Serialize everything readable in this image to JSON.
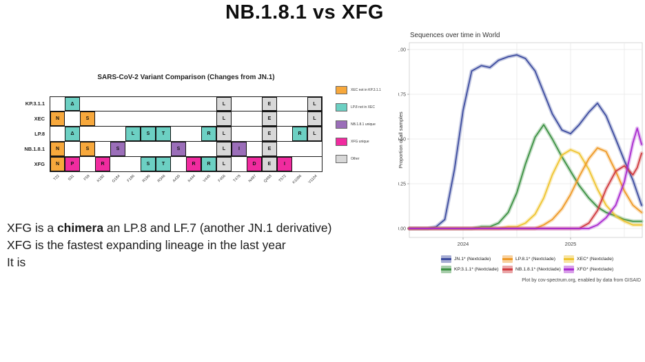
{
  "slide": {
    "title": "NB.1.8.1 vs XFG",
    "body_lines": [
      [
        {
          "text": "XFG is a ",
          "bold": false
        },
        {
          "text": "chimera",
          "bold": true
        },
        {
          "text": " an LP.8 and LF.7 (another JN.1 derivative)",
          "bold": false
        }
      ],
      [
        {
          "text": "XFG is the fastest expanding lineage in the last year",
          "bold": false
        }
      ],
      [
        {
          "text": "It is",
          "bold": false
        }
      ]
    ]
  },
  "chart_data": [
    {
      "type": "heatmap",
      "title": "SARS-CoV-2 Variant Comparison (Changes from JN.1)",
      "columns": [
        "T22",
        "S31",
        "F59",
        "K182",
        "G184",
        "F186",
        "R190",
        "R346",
        "A435",
        "K444",
        "V445",
        "F456",
        "T478",
        "N487",
        "Q493",
        "T572",
        "K1086",
        "V1104"
      ],
      "rows": [
        {
          "label": "KP.3.1.1",
          "cells": [
            {
              "col": "S31",
              "letter": "Δ",
              "color": "teal"
            },
            {
              "col": "F456",
              "letter": "L",
              "color": "gray"
            },
            {
              "col": "Q493",
              "letter": "E",
              "color": "gray"
            },
            {
              "col": "V1104",
              "letter": "L",
              "color": "gray"
            }
          ]
        },
        {
          "label": "XEC",
          "cells": [
            {
              "col": "T22",
              "letter": "N",
              "color": "orange"
            },
            {
              "col": "F59",
              "letter": "S",
              "color": "orange"
            },
            {
              "col": "F456",
              "letter": "L",
              "color": "gray"
            },
            {
              "col": "Q493",
              "letter": "E",
              "color": "gray"
            },
            {
              "col": "V1104",
              "letter": "L",
              "color": "gray"
            }
          ]
        },
        {
          "label": "LP.8",
          "cells": [
            {
              "col": "S31",
              "letter": "Δ",
              "color": "teal"
            },
            {
              "col": "F186",
              "letter": "L",
              "color": "teal"
            },
            {
              "col": "R190",
              "letter": "S",
              "color": "teal"
            },
            {
              "col": "R346",
              "letter": "T",
              "color": "teal"
            },
            {
              "col": "V445",
              "letter": "R",
              "color": "teal"
            },
            {
              "col": "F456",
              "letter": "L",
              "color": "gray"
            },
            {
              "col": "Q493",
              "letter": "E",
              "color": "gray"
            },
            {
              "col": "K1086",
              "letter": "R",
              "color": "teal"
            },
            {
              "col": "V1104",
              "letter": "L",
              "color": "gray"
            }
          ]
        },
        {
          "label": "NB.1.8.1",
          "cells": [
            {
              "col": "T22",
              "letter": "N",
              "color": "orange"
            },
            {
              "col": "F59",
              "letter": "S",
              "color": "orange"
            },
            {
              "col": "G184",
              "letter": "S",
              "color": "purple"
            },
            {
              "col": "A435",
              "letter": "S",
              "color": "purple"
            },
            {
              "col": "F456",
              "letter": "L",
              "color": "gray"
            },
            {
              "col": "T478",
              "letter": "I",
              "color": "purple"
            },
            {
              "col": "Q493",
              "letter": "E",
              "color": "gray"
            }
          ]
        },
        {
          "label": "XFG",
          "cells": [
            {
              "col": "T22",
              "letter": "N",
              "color": "orange"
            },
            {
              "col": "S31",
              "letter": "P",
              "color": "magenta"
            },
            {
              "col": "K182",
              "letter": "R",
              "color": "magenta"
            },
            {
              "col": "R190",
              "letter": "S",
              "color": "teal"
            },
            {
              "col": "R346",
              "letter": "T",
              "color": "teal"
            },
            {
              "col": "K444",
              "letter": "R",
              "color": "magenta"
            },
            {
              "col": "V445",
              "letter": "R",
              "color": "teal"
            },
            {
              "col": "F456",
              "letter": "L",
              "color": "gray"
            },
            {
              "col": "N487",
              "letter": "D",
              "color": "magenta"
            },
            {
              "col": "Q493",
              "letter": "E",
              "color": "gray"
            },
            {
              "col": "T572",
              "letter": "I",
              "color": "magenta"
            }
          ]
        }
      ],
      "palette": {
        "orange": "#F7A83C",
        "teal": "#6CD0C3",
        "purple": "#9B6EB9",
        "magenta": "#F02B9F",
        "gray": "#D8D8D8"
      },
      "legend": [
        {
          "label": "XEC not in KP.3.1.1",
          "color": "orange"
        },
        {
          "label": "LP.8 not in XEC",
          "color": "teal"
        },
        {
          "label": "NB.1.8.1 unique",
          "color": "purple"
        },
        {
          "label": "XFG unique",
          "color": "magenta"
        },
        {
          "label": "Other",
          "color": "gray"
        }
      ]
    },
    {
      "type": "line",
      "title": "Sequences over time in World",
      "xlabel": "",
      "ylabel": "Proportion of all samples",
      "xlim": [
        2023.5,
        2025.667
      ],
      "ylim": [
        0,
        1.0
      ],
      "grid": true,
      "xticks": [
        2024,
        2025
      ],
      "xtick_labels": [
        "2024",
        "2025"
      ],
      "xgrid_minor": [
        2024,
        2024.5,
        2025,
        2025.5
      ],
      "yticks": [
        0,
        0.25,
        0.5,
        0.75,
        1.0
      ],
      "ytick_labels": [
        "0.00",
        "0.25",
        "0.50",
        "0.75",
        "1.00"
      ],
      "x": [
        2023.5,
        2023.58,
        2023.67,
        2023.75,
        2023.83,
        2023.92,
        2024.0,
        2024.08,
        2024.17,
        2024.25,
        2024.33,
        2024.42,
        2024.5,
        2024.58,
        2024.67,
        2024.75,
        2024.83,
        2024.92,
        2025.0,
        2025.08,
        2025.17,
        2025.25,
        2025.33,
        2025.42,
        2025.5,
        2025.58,
        2025.62,
        2025.66
      ],
      "series": [
        {
          "name": "JN.1* (Nextclade)",
          "color": "#3D4C9F",
          "values": [
            0.0,
            0.0,
            0.0,
            0.01,
            0.05,
            0.33,
            0.66,
            0.88,
            0.91,
            0.9,
            0.94,
            0.96,
            0.97,
            0.95,
            0.88,
            0.76,
            0.64,
            0.55,
            0.53,
            0.58,
            0.65,
            0.7,
            0.63,
            0.5,
            0.38,
            0.27,
            0.2,
            0.13
          ]
        },
        {
          "name": "KP.3.1.1* (Nextclade)",
          "color": "#3C9143",
          "values": [
            0,
            0,
            0,
            0,
            0,
            0,
            0,
            0.0,
            0.01,
            0.01,
            0.03,
            0.09,
            0.2,
            0.36,
            0.51,
            0.58,
            0.5,
            0.4,
            0.32,
            0.24,
            0.17,
            0.12,
            0.09,
            0.07,
            0.05,
            0.04,
            0.04,
            0.04
          ]
        },
        {
          "name": "XEC* (Nextclade)",
          "color": "#EFC42F",
          "values": [
            0,
            0,
            0,
            0,
            0,
            0,
            0,
            0,
            0,
            0,
            0.0,
            0.01,
            0.01,
            0.03,
            0.08,
            0.17,
            0.3,
            0.41,
            0.44,
            0.42,
            0.33,
            0.22,
            0.13,
            0.07,
            0.04,
            0.02,
            0.02,
            0.02
          ]
        },
        {
          "name": "LP.8.1* (Nextclade)",
          "color": "#EF9A27",
          "values": [
            0,
            0,
            0,
            0,
            0,
            0,
            0,
            0,
            0,
            0,
            0,
            0,
            0,
            0,
            0,
            0.02,
            0.05,
            0.11,
            0.19,
            0.29,
            0.39,
            0.45,
            0.43,
            0.32,
            0.21,
            0.13,
            0.11,
            0.09
          ]
        },
        {
          "name": "NB.1.8.1* (Nextclade)",
          "color": "#D03A3F",
          "values": [
            0,
            0,
            0,
            0,
            0,
            0,
            0,
            0,
            0,
            0,
            0,
            0,
            0,
            0,
            0,
            0,
            0,
            0,
            0,
            0,
            0.03,
            0.1,
            0.22,
            0.32,
            0.35,
            0.3,
            0.34,
            0.42
          ]
        },
        {
          "name": "XFG* (Nextclade)",
          "color": "#A92ACF",
          "values": [
            0,
            0,
            0,
            0,
            0,
            0,
            0,
            0,
            0,
            0,
            0,
            0,
            0,
            0,
            0,
            0,
            0,
            0,
            0,
            0,
            0,
            0.02,
            0.06,
            0.13,
            0.26,
            0.48,
            0.56,
            0.47
          ]
        }
      ],
      "legend_position": "bottom",
      "legend_order": [
        [
          "JN.1* (Nextclade)",
          "LP.8.1* (Nextclade)",
          "XEC* (Nextclade)"
        ],
        [
          "KP.3.1.1* (Nextclade)",
          "NB.1.8.1* (Nextclade)",
          "XFG* (Nextclade)"
        ]
      ],
      "caption": "Plot by cov-spectrum.org, enabled by data from GISAID"
    }
  ]
}
